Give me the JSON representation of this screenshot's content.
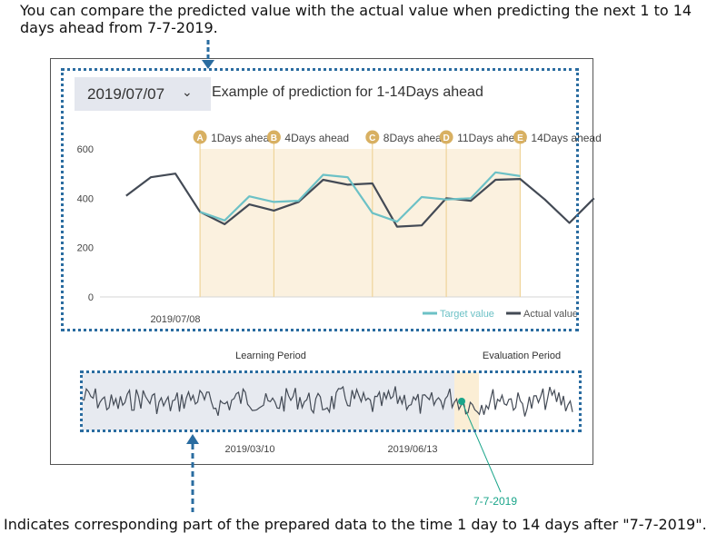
{
  "annotations": {
    "top": "You can compare the predicted value with the actual value when predicting the next 1 to 14 days ahead from 7-7-2019.",
    "bottom": "Indicates corresponding part of the prepared data to the time 1 day to 14 days after \"7-7-2019\".",
    "marker_label": "7-7-2019"
  },
  "controls": {
    "date_select_value": "2019/07/07",
    "chart_title": "Example of prediction for 1-14Days ahead"
  },
  "colors": {
    "target": "#6cc1c6",
    "actual": "#434a55",
    "highlight_fill": "#fbf1df",
    "highlight_line": "#efd49a",
    "badge": "#d8b062",
    "annotation_arrow": "#2a6ca0",
    "marker": "#1aa58a",
    "learning_fill": "#e7eaf0"
  },
  "chart_data": [
    {
      "type": "line",
      "title": "Example of prediction for 1-14Days ahead",
      "xlabel": "",
      "ylabel": "",
      "ylim": [
        0,
        600
      ],
      "y_ticks": [
        0,
        200,
        400,
        600
      ],
      "x_tick_label": "2019/07/08",
      "legend_position": "bottom-right",
      "day_index": [
        -5,
        -4,
        -3,
        -2,
        -1,
        0,
        1,
        2,
        3,
        4,
        5,
        6,
        7,
        8,
        9,
        10,
        11,
        12,
        13,
        14,
        15,
        16,
        17,
        18
      ],
      "series": [
        {
          "name": "Target value",
          "x": [
            1,
            2,
            3,
            4,
            5,
            6,
            7,
            8,
            9,
            10,
            11,
            12,
            13,
            14
          ],
          "values": [
            345,
            310,
            408,
            385,
            390,
            495,
            485,
            340,
            305,
            405,
            395,
            400,
            505,
            490
          ]
        },
        {
          "name": "Actual value",
          "x": [
            -2,
            -1,
            0,
            1,
            2,
            3,
            4,
            5,
            6,
            7,
            8,
            9,
            10,
            11,
            12,
            13,
            14,
            15,
            16,
            17
          ],
          "values": [
            410,
            485,
            500,
            345,
            295,
            375,
            350,
            385,
            475,
            455,
            460,
            285,
            290,
            400,
            390,
            475,
            478,
            395,
            300,
            400
          ]
        }
      ],
      "markers": [
        {
          "badge": "A",
          "label": "1Days ahead",
          "x": 1
        },
        {
          "badge": "B",
          "label": "4Days ahead",
          "x": 4
        },
        {
          "badge": "C",
          "label": "8Days ahead",
          "x": 8
        },
        {
          "badge": "D",
          "label": "11Days ahead",
          "x": 11
        },
        {
          "badge": "E",
          "label": "14Days ahead",
          "x": 14
        }
      ],
      "highlight_range": [
        1,
        14
      ]
    },
    {
      "type": "line",
      "title": "",
      "period_labels": {
        "learning": "Learning Period",
        "evaluation": "Evaluation Period"
      },
      "x_tick_labels": [
        "2019/03/10",
        "2019/06/13"
      ],
      "series": [
        {
          "name": "",
          "values": []
        }
      ]
    }
  ]
}
